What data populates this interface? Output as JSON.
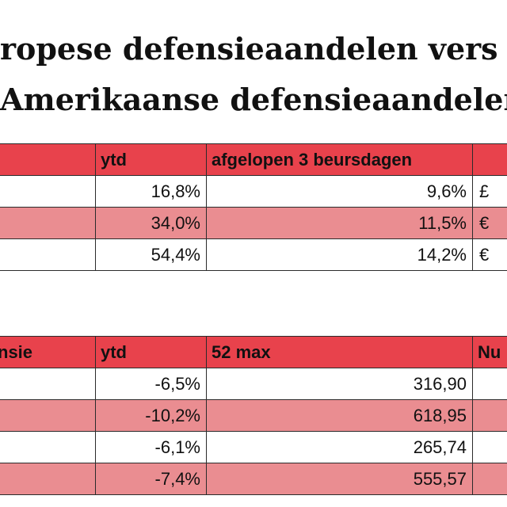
{
  "title_line1": "ropese defensieaandelen vers",
  "title_line2": "Amerikaanse defensieaandelen",
  "table1": {
    "headers": [
      "",
      "ytd",
      "afgelopen 3 beursdagen",
      ""
    ],
    "rows": [
      {
        "c0": "",
        "ytd": "16,8%",
        "change": "9,6%",
        "cur": "£"
      },
      {
        "c0": "",
        "ytd": "34,0%",
        "change": "11,5%",
        "cur": "€"
      },
      {
        "c0": "",
        "ytd": "54,4%",
        "change": "14,2%",
        "cur": "€"
      }
    ]
  },
  "table2": {
    "headers": [
      "nsie",
      "ytd",
      "52 max",
      "Nu"
    ],
    "rows": [
      {
        "c0": "",
        "ytd": "-6,5%",
        "max": "316,90",
        "now": ""
      },
      {
        "c0": "",
        "ytd": "-10,2%",
        "max": "618,95",
        "now": ""
      },
      {
        "c0": "",
        "ytd": "-6,1%",
        "max": "265,74",
        "now": ""
      },
      {
        "c0": "",
        "ytd": "-7,4%",
        "max": "555,57",
        "now": ""
      }
    ]
  },
  "colors": {
    "header": "#e8424c",
    "pink_row": "#ea8d91",
    "border": "#2b2b2b"
  }
}
